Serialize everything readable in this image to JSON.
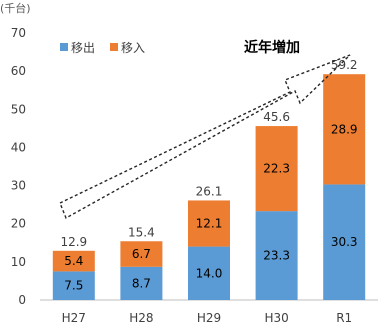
{
  "chart_data": {
    "type": "bar",
    "stacked": true,
    "unit_label": "(千台)",
    "categories": [
      "H27",
      "H28",
      "H29",
      "H30",
      "R1"
    ],
    "series": [
      {
        "name": "移出",
        "values": [
          7.5,
          8.7,
          14.0,
          23.3,
          30.3
        ],
        "value_labels": [
          "7.5",
          "8.7",
          "14.0",
          "23.3",
          "30.3"
        ],
        "color": "#5b9bd5"
      },
      {
        "name": "移入",
        "values": [
          5.4,
          6.7,
          12.1,
          22.3,
          28.9
        ],
        "value_labels": [
          "5.4",
          "6.7",
          "12.1",
          "22.3",
          "28.9"
        ],
        "color": "#ed7d31"
      }
    ],
    "totals": [
      "12.9",
      "15.4",
      "26.1",
      "45.6",
      "59.2"
    ],
    "ylim": [
      0,
      70
    ],
    "yticks": [
      "0",
      "10",
      "20",
      "30",
      "40",
      "50",
      "60",
      "70"
    ],
    "grid": false,
    "legend": "top-left",
    "annotation": "近年増加"
  }
}
